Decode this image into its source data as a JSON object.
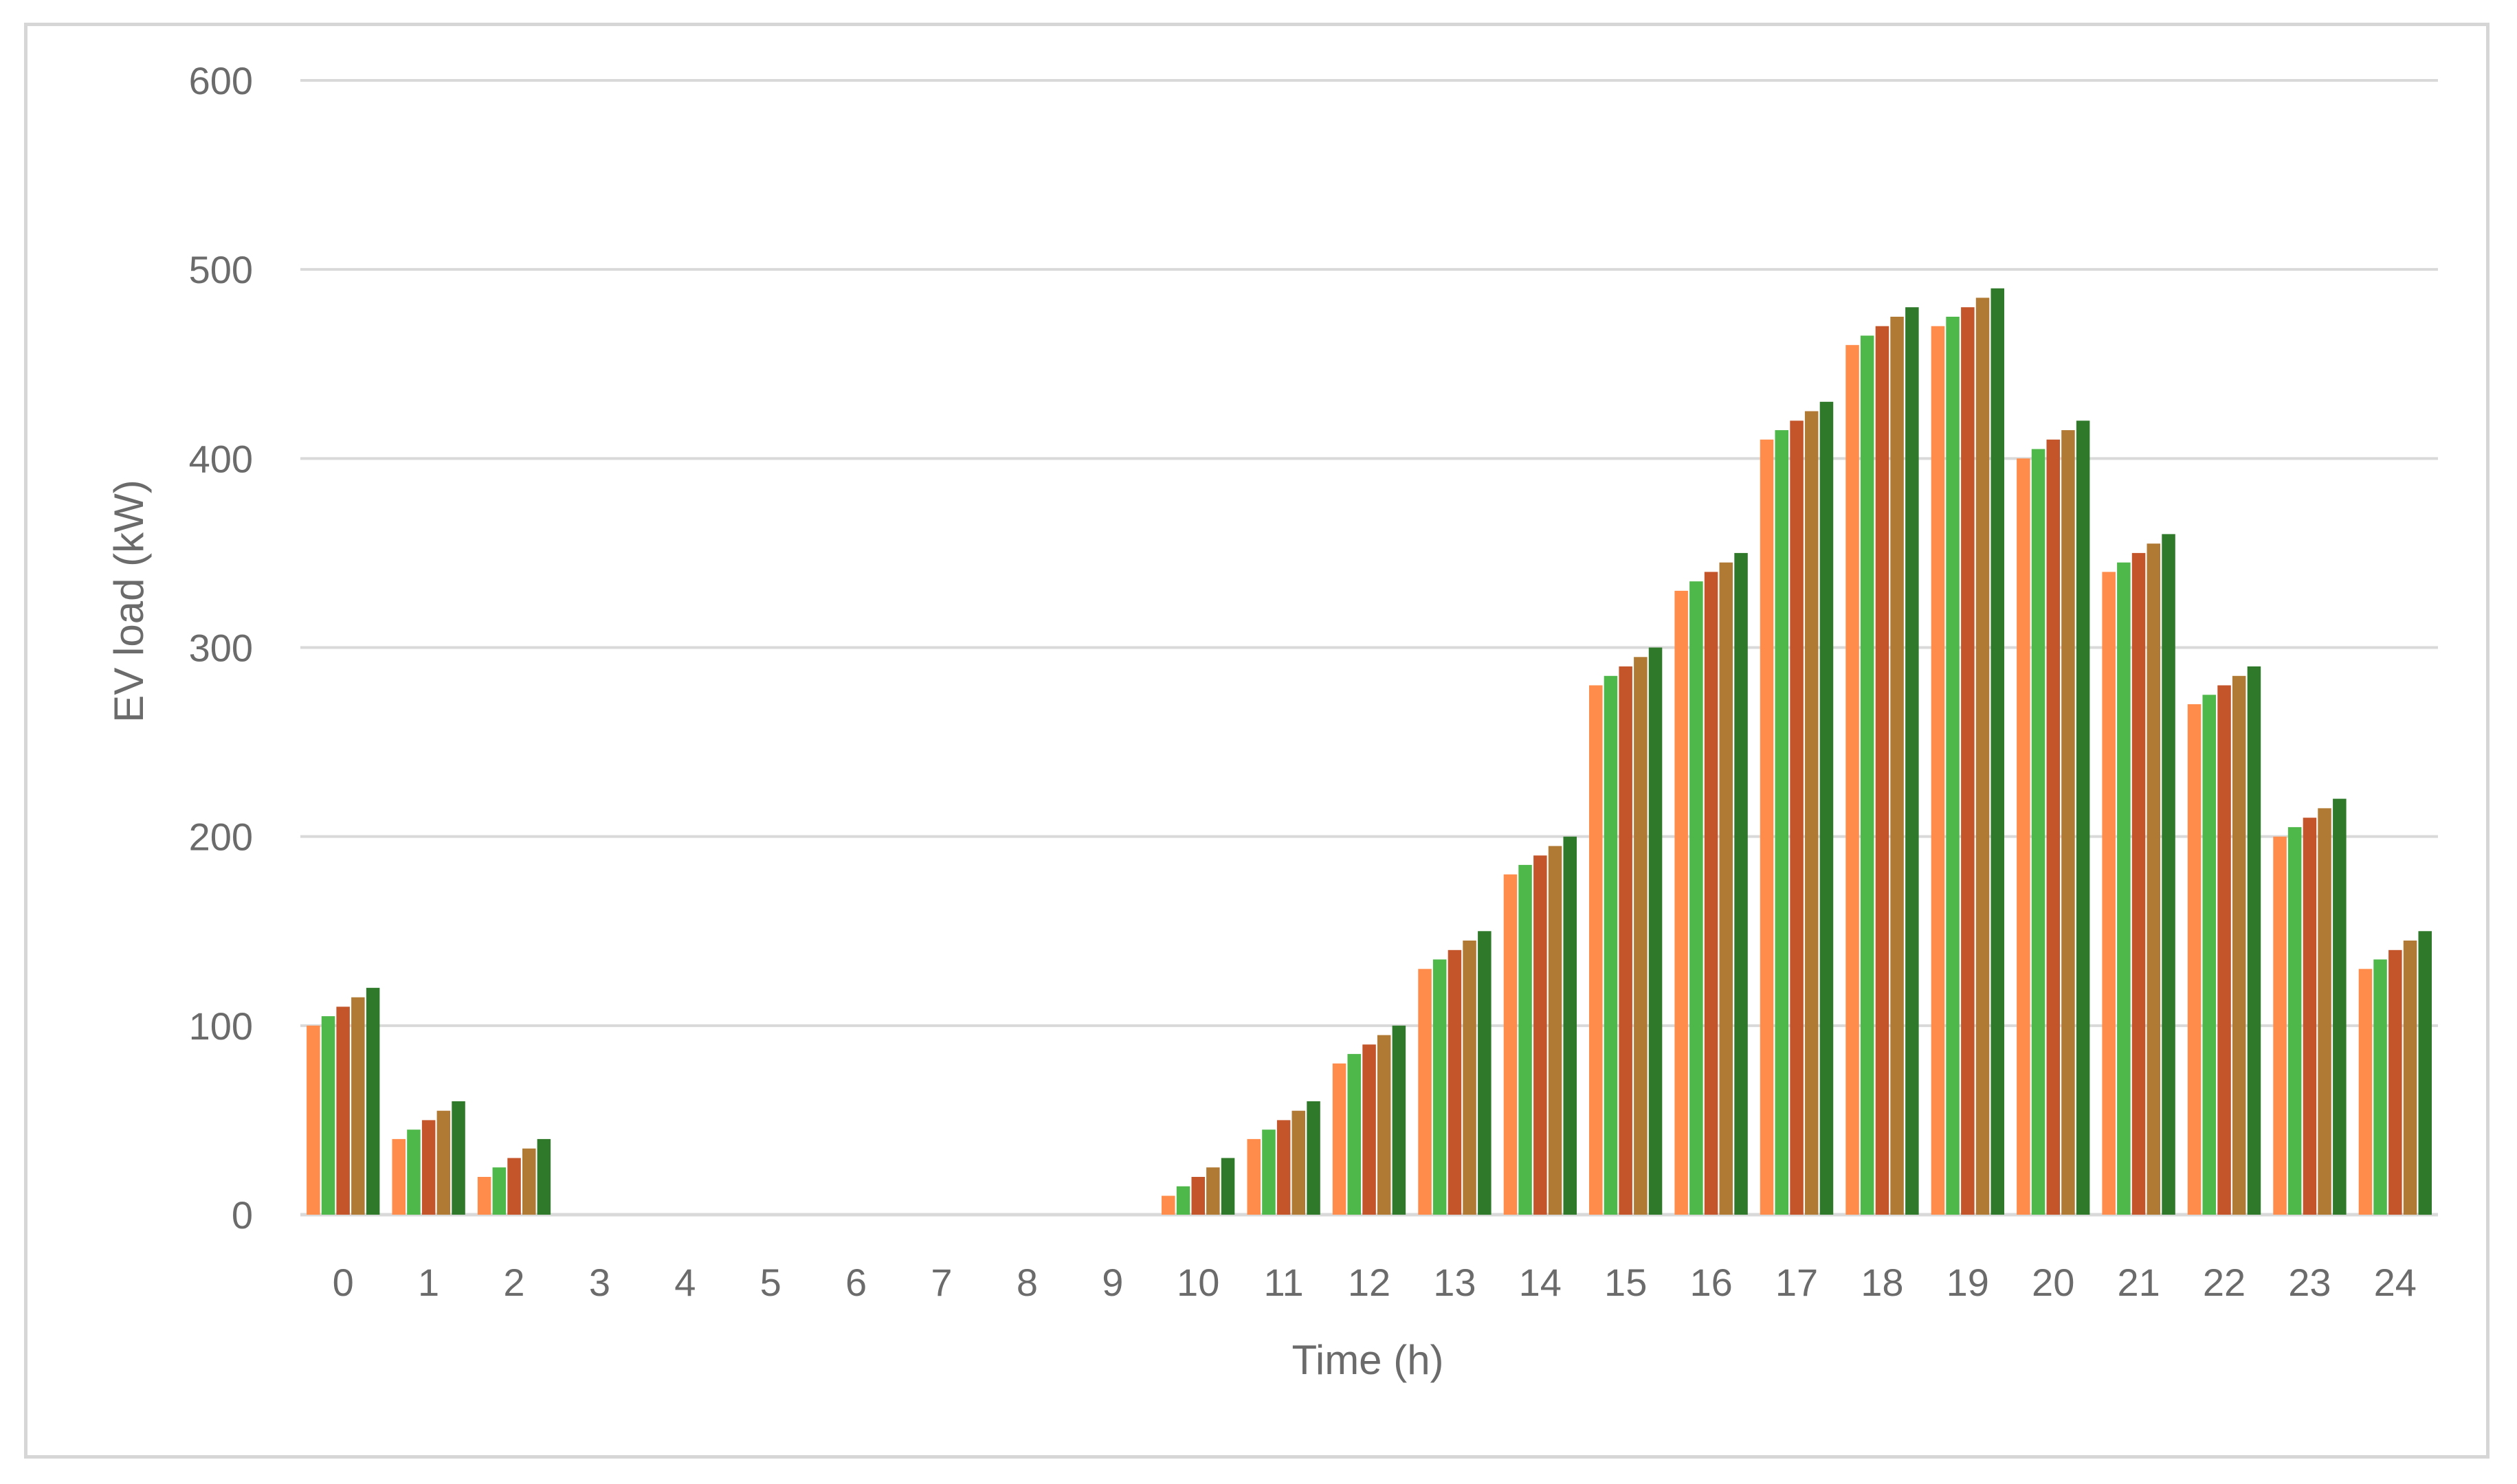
{
  "chart_data": {
    "type": "bar",
    "xlabel": "Time (h)",
    "ylabel": "EV load (kW)",
    "ylim": [
      0,
      600
    ],
    "yticks": [
      0,
      100,
      200,
      300,
      400,
      500,
      600
    ],
    "grid": true,
    "categories": [
      "0",
      "1",
      "2",
      "3",
      "4",
      "5",
      "6",
      "7",
      "8",
      "9",
      "10",
      "11",
      "12",
      "13",
      "14",
      "15",
      "16",
      "17",
      "18",
      "19",
      "20",
      "21",
      "22",
      "23",
      "24"
    ],
    "series": [
      {
        "color": "#ff8c4a",
        "values": [
          100,
          40,
          20,
          0,
          0,
          0,
          0,
          0,
          0,
          0,
          10,
          40,
          80,
          130,
          180,
          280,
          330,
          410,
          460,
          470,
          400,
          340,
          270,
          200,
          130
        ]
      },
      {
        "color": "#4fb84a",
        "values": [
          105,
          45,
          25,
          0,
          0,
          0,
          0,
          0,
          0,
          0,
          15,
          45,
          85,
          135,
          185,
          285,
          335,
          415,
          465,
          475,
          405,
          345,
          275,
          205,
          135
        ]
      },
      {
        "color": "#c4552a",
        "values": [
          110,
          50,
          30,
          0,
          0,
          0,
          0,
          0,
          0,
          0,
          20,
          50,
          90,
          140,
          190,
          290,
          340,
          420,
          470,
          480,
          410,
          350,
          280,
          210,
          140
        ]
      },
      {
        "color": "#b07a34",
        "values": [
          115,
          55,
          35,
          0,
          0,
          0,
          0,
          0,
          0,
          0,
          25,
          55,
          95,
          145,
          195,
          295,
          345,
          425,
          475,
          485,
          415,
          355,
          285,
          215,
          145
        ]
      },
      {
        "color": "#2f7a2a",
        "values": [
          120,
          60,
          40,
          0,
          0,
          0,
          0,
          0,
          0,
          0,
          30,
          60,
          100,
          150,
          200,
          300,
          350,
          430,
          480,
          490,
          420,
          360,
          290,
          220,
          150
        ]
      }
    ]
  }
}
